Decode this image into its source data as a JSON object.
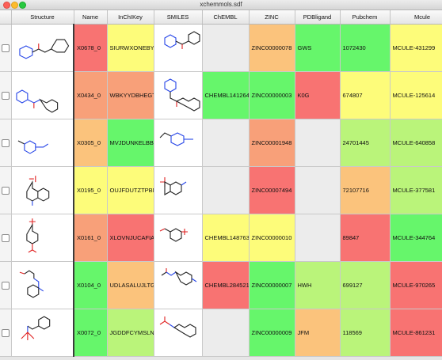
{
  "window": {
    "title": "xchemmols.sdf"
  },
  "colors": {
    "green": "#66f66b",
    "light_green": "#baf47a",
    "yellow": "#fdfc7a",
    "orange": "#fbc37c",
    "salmon": "#f8a079",
    "red": "#f87372",
    "empty": "#ececec"
  },
  "columns": [
    "Structure",
    "Name",
    "InChIKey",
    "SMILES",
    "ChEMBL",
    "ZINC",
    "PDBligand",
    "Pubchem",
    "Mcule"
  ],
  "rows": [
    {
      "name": "X0678_0",
      "inchikey": "SIURWXONEBYXJ",
      "chembl": "",
      "zinc": "ZINC00000078",
      "pdbligand": "GWS",
      "pubchem": "1072430",
      "mcule": "MCULE-431299",
      "icons": {
        "structure": "molecule-2d-structure-icon",
        "smiles": "molecule-smiles-depiction-icon"
      },
      "colors": {
        "name": "#f87372",
        "inchikey": "#fdfc7a",
        "chembl": "#ececec",
        "zinc": "#fbc37c",
        "pdbligand": "#66f66b",
        "pubchem": "#66f66b",
        "mcule": "#fdfc7a"
      }
    },
    {
      "name": "X0434_0",
      "inchikey": "WBKYYDBHEGTT",
      "chembl": "CHEMBL141264",
      "zinc": "ZINC00000003",
      "pdbligand": "K0G",
      "pubchem": "674807",
      "mcule": "MCULE-125614",
      "icons": {
        "structure": "molecule-2d-structure-icon",
        "smiles": "molecule-smiles-depiction-icon"
      },
      "colors": {
        "name": "#f8a079",
        "inchikey": "#f8a079",
        "chembl": "#66f66b",
        "zinc": "#66f66b",
        "pdbligand": "#f87372",
        "pubchem": "#fdfc7a",
        "mcule": "#fdfc7a"
      }
    },
    {
      "name": "X0305_0",
      "inchikey": "MVJDUNKELBBN",
      "chembl": "",
      "zinc": "ZINC00001948",
      "pdbligand": "",
      "pubchem": "24701445",
      "mcule": "MCULE-640858",
      "icons": {
        "structure": "molecule-2d-structure-icon",
        "smiles": "molecule-smiles-depiction-icon"
      },
      "colors": {
        "name": "#fbc37c",
        "inchikey": "#66f66b",
        "chembl": "#ececec",
        "zinc": "#f8a079",
        "pdbligand": "#ececec",
        "pubchem": "#baf47a",
        "mcule": "#baf47a"
      }
    },
    {
      "name": "X0195_0",
      "inchikey": "OUJFDUTZTPBM",
      "chembl": "",
      "zinc": "ZINC00007494",
      "pdbligand": "",
      "pubchem": "72107716",
      "mcule": "MCULE-377581",
      "icons": {
        "structure": "molecule-2d-structure-icon",
        "smiles": "molecule-smiles-depiction-icon"
      },
      "colors": {
        "name": "#fdfc7a",
        "inchikey": "#fdfc7a",
        "chembl": "#ececec",
        "zinc": "#f87372",
        "pdbligand": "#ececec",
        "pubchem": "#fbc37c",
        "mcule": "#baf47a"
      }
    },
    {
      "name": "X0161_0",
      "inchikey": "XLOVNJUCAFIA",
      "chembl": "CHEMBL148763",
      "zinc": "ZINC00000010",
      "pdbligand": "",
      "pubchem": "89847",
      "mcule": "MCULE-344764",
      "icons": {
        "structure": "molecule-2d-structure-icon",
        "smiles": "molecule-smiles-depiction-icon"
      },
      "colors": {
        "name": "#f8a079",
        "inchikey": "#f87372",
        "chembl": "#fdfc7a",
        "zinc": "#fdfc7a",
        "pdbligand": "#ececec",
        "pubchem": "#f87372",
        "mcule": "#66f66b"
      }
    },
    {
      "name": "X0104_0",
      "inchikey": "UDLASALUJLTGJ",
      "chembl": "CHEMBL284521",
      "zinc": "ZINC00000007",
      "pdbligand": "HWH",
      "pubchem": "699127",
      "mcule": "MCULE-970265",
      "icons": {
        "structure": "molecule-2d-structure-icon",
        "smiles": "molecule-smiles-depiction-icon"
      },
      "colors": {
        "name": "#66f66b",
        "inchikey": "#fbc37c",
        "chembl": "#f87372",
        "zinc": "#66f66b",
        "pdbligand": "#baf47a",
        "pubchem": "#baf47a",
        "mcule": "#f87372"
      }
    },
    {
      "name": "X0072_0",
      "inchikey": "JGDDFCYMSLNO",
      "chembl": "",
      "zinc": "ZINC00000009",
      "pdbligand": "JFM",
      "pubchem": "118569",
      "mcule": "MCULE-861231",
      "icons": {
        "structure": "molecule-2d-structure-icon",
        "smiles": "molecule-smiles-depiction-icon"
      },
      "colors": {
        "name": "#66f66b",
        "inchikey": "#baf47a",
        "chembl": "#ececec",
        "zinc": "#66f66b",
        "pdbligand": "#fbc37c",
        "pubchem": "#baf47a",
        "mcule": "#f87372"
      }
    }
  ]
}
